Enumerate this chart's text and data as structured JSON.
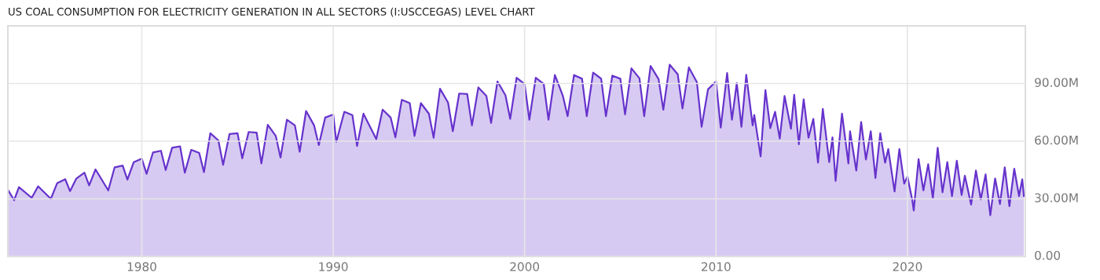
{
  "chart_data": {
    "type": "area",
    "title": "US COAL CONSUMPTION FOR ELECTRICITY GENERATION IN ALL SECTORS (I:USCCEGAS) LEVEL CHART",
    "x": [
      "1973-01",
      "1973-05",
      "1973-08",
      "1974-04",
      "1974-08",
      "1975-04",
      "1975-08",
      "1976-01",
      "1976-04",
      "1976-08",
      "1977-01",
      "1977-04",
      "1977-08",
      "1978-04",
      "1978-08",
      "1979-01",
      "1979-04",
      "1979-08",
      "1980-01",
      "1980-04",
      "1980-08",
      "1981-01",
      "1981-04",
      "1981-08",
      "1982-01",
      "1982-04",
      "1982-08",
      "1983-01",
      "1983-04",
      "1983-08",
      "1984-01",
      "1984-04",
      "1984-08",
      "1985-01",
      "1985-04",
      "1985-08",
      "1986-01",
      "1986-04",
      "1986-08",
      "1987-01",
      "1987-04",
      "1987-08",
      "1988-01",
      "1988-04",
      "1988-08",
      "1989-01",
      "1989-04",
      "1989-08",
      "1990-01",
      "1990-03",
      "1990-08",
      "1991-01",
      "1991-04",
      "1991-08",
      "1992-04",
      "1992-08",
      "1993-01",
      "1993-04",
      "1993-08",
      "1994-01",
      "1994-04",
      "1994-08",
      "1995-01",
      "1995-04",
      "1995-08",
      "1996-01",
      "1996-04",
      "1996-08",
      "1997-01",
      "1997-04",
      "1997-08",
      "1998-01",
      "1998-04",
      "1998-08",
      "1999-01",
      "1999-04",
      "1999-08",
      "2000-01",
      "2000-04",
      "2000-08",
      "2001-01",
      "2001-04",
      "2001-08",
      "2002-01",
      "2002-04",
      "2002-08",
      "2003-01",
      "2003-04",
      "2003-08",
      "2004-01",
      "2004-04",
      "2004-08",
      "2005-01",
      "2005-04",
      "2005-08",
      "2006-01",
      "2006-04",
      "2006-08",
      "2007-01",
      "2007-04",
      "2007-08",
      "2008-01",
      "2008-04",
      "2008-08",
      "2009-01",
      "2009-04",
      "2009-08",
      "2010-01",
      "2010-04",
      "2010-08",
      "2010-11",
      "2011-02",
      "2011-05",
      "2011-08",
      "2011-12",
      "2012-01",
      "2012-05",
      "2012-08",
      "2012-11",
      "2013-02",
      "2013-05",
      "2013-08",
      "2013-12",
      "2014-02",
      "2014-05",
      "2014-08",
      "2014-11",
      "2015-02",
      "2015-05",
      "2015-08",
      "2015-12",
      "2016-02",
      "2016-04",
      "2016-08",
      "2016-12",
      "2017-01",
      "2017-05",
      "2017-08",
      "2017-11",
      "2018-02",
      "2018-05",
      "2018-08",
      "2018-11",
      "2019-01",
      "2019-05",
      "2019-08",
      "2019-11",
      "2020-01",
      "2020-04",
      "2020-05",
      "2020-08",
      "2020-11",
      "2021-02",
      "2021-05",
      "2021-08",
      "2021-11",
      "2022-02",
      "2022-05",
      "2022-08",
      "2022-11",
      "2023-01",
      "2023-05",
      "2023-08",
      "2023-11",
      "2024-02",
      "2024-05",
      "2024-08",
      "2024-11",
      "2025-02",
      "2025-05",
      "2025-08",
      "2025-11",
      "2026-01",
      "2026-02"
    ],
    "series": [
      {
        "color": "#6633cc",
        "values": [
          34.8,
          29.3,
          36.1,
          30.5,
          36.5,
          30.0,
          38.2,
          40.2,
          34,
          40.6,
          43.6,
          37,
          45.3,
          34.4,
          46.4,
          47.3,
          40,
          49.1,
          50.9,
          43,
          54.1,
          55,
          45,
          56.6,
          57.3,
          43.6,
          55.5,
          53.9,
          43.9,
          64.1,
          60.4,
          47.7,
          63.7,
          64.1,
          51.1,
          64.8,
          64.4,
          48.4,
          68.5,
          62.7,
          51.5,
          71.2,
          68.2,
          54.5,
          75.7,
          68.2,
          58,
          72.3,
          73.9,
          59.7,
          75.3,
          73.6,
          57.5,
          74.3,
          61.1,
          76.4,
          72.3,
          62,
          81.5,
          79.8,
          62.7,
          79.8,
          74.3,
          61.8,
          87.3,
          80.1,
          65.2,
          84.8,
          84.5,
          68.2,
          88,
          83.6,
          69.5,
          91.1,
          83.9,
          71.6,
          93,
          89.7,
          71.2,
          93,
          89.7,
          71.2,
          94.4,
          83.5,
          73,
          94.4,
          92.5,
          73,
          95.7,
          92.5,
          73,
          94.1,
          92.5,
          73.9,
          97.9,
          92.7,
          73,
          99.1,
          92.3,
          76.4,
          99.8,
          94.8,
          77,
          98.4,
          90.7,
          67.5,
          87,
          91.1,
          67.1,
          95.5,
          71.2,
          90.3,
          67.5,
          94.5,
          68.2,
          73.6,
          52.1,
          86.6,
          66.8,
          75.3,
          61.4,
          83.5,
          66.5,
          84.1,
          58.4,
          81.8,
          61.8,
          71.6,
          48.8,
          76.8,
          49.1,
          62,
          39.3,
          74.3,
          48.4,
          65.2,
          44.7,
          70,
          50.5,
          65.2,
          40.9,
          64.1,
          48.8,
          55.9,
          33.8,
          55.9,
          37.9,
          41.6,
          29.7,
          23.9,
          50.7,
          34.4,
          48,
          30.3,
          56.6,
          33.4,
          49.1,
          31.4,
          49.8,
          32,
          42,
          27,
          44.7,
          29.7,
          42.7,
          21.5,
          40.6,
          27.3,
          46.4,
          26.2,
          45.7,
          31.4,
          40.2,
          31.4
        ]
      }
    ],
    "xlim": [
      "1973-01",
      "2026-03"
    ],
    "xticks": [
      {
        "value": "1980",
        "label": "1980"
      },
      {
        "value": "1990",
        "label": "1990"
      },
      {
        "value": "2000",
        "label": "2000"
      },
      {
        "value": "2010",
        "label": "2010"
      },
      {
        "value": "2020",
        "label": "2020"
      }
    ],
    "ylim": [
      0,
      120
    ],
    "yticks": [
      {
        "value": 0,
        "label": "0.00"
      },
      {
        "value": 30,
        "label": "30.00M"
      },
      {
        "value": 60,
        "label": "60.00M"
      },
      {
        "value": 90,
        "label": "90.00M"
      }
    ],
    "grid": true
  }
}
